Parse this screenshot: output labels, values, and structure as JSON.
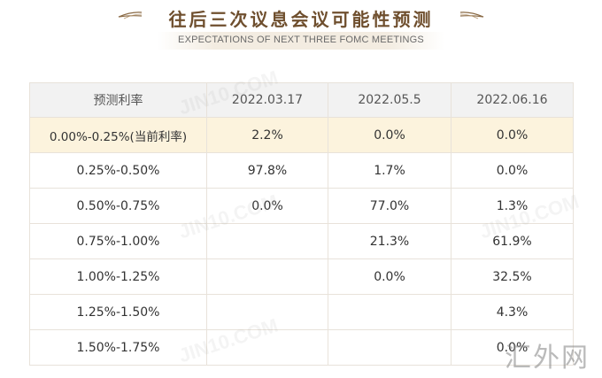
{
  "header": {
    "title": "往后三次议息会议可能性预测",
    "subtitle": "EXPECTATIONS OF NEXT THREE FOMC MEETINGS"
  },
  "table": {
    "columns": [
      "预测利率",
      "2022.03.17",
      "2022.05.5",
      "2022.06.16"
    ],
    "rows": [
      {
        "rate": "0.00%-0.25%(当前利率)",
        "values": [
          "2.2%",
          "0.0%",
          "0.0%"
        ]
      },
      {
        "rate": "0.25%-0.50%",
        "values": [
          "97.8%",
          "1.7%",
          "0.0%"
        ]
      },
      {
        "rate": "0.50%-0.75%",
        "values": [
          "0.0%",
          "77.0%",
          "1.3%"
        ]
      },
      {
        "rate": "0.75%-1.00%",
        "values": [
          "",
          "21.3%",
          "61.9%"
        ]
      },
      {
        "rate": "1.00%-1.25%",
        "values": [
          "",
          "0.0%",
          "32.5%"
        ]
      },
      {
        "rate": "1.25%-1.50%",
        "values": [
          "",
          "",
          "4.3%"
        ]
      },
      {
        "rate": "1.50%-1.75%",
        "values": [
          "",
          "",
          "0.0%"
        ]
      }
    ]
  },
  "watermarks": {
    "brand": "JIN10.COM",
    "corner": "汇外网"
  }
}
